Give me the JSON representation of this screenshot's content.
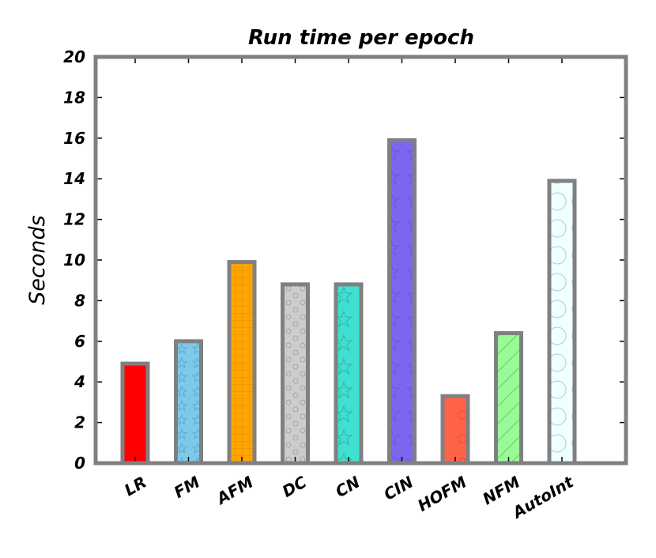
{
  "chart_data": {
    "type": "bar",
    "title": "Run time per epoch",
    "ylabel": "Seconds",
    "xlabel": "",
    "ylim": [
      0,
      20
    ],
    "yticks": [
      "0",
      "2",
      "4",
      "6",
      "8",
      "10",
      "12",
      "14",
      "16",
      "18",
      "20"
    ],
    "categories": [
      "LR",
      "FM",
      "AFM",
      "DC",
      "CN",
      "CIN",
      "HOFM",
      "NFM",
      "AutoInt"
    ],
    "values": [
      4.9,
      6.0,
      9.9,
      8.8,
      8.8,
      15.9,
      3.3,
      6.4,
      13.9
    ],
    "colors": [
      "#ff0000",
      "#7ec8e8",
      "#ffa500",
      "#cccccc",
      "#40e0d0",
      "#7b68ee",
      "#ff6347",
      "#98fb98",
      "#f0ffff"
    ],
    "patterns": [
      "none",
      "stars",
      "grid",
      "circles-small",
      "stars-large",
      "stars-faint",
      "circles-sparse",
      "diagonal",
      "circles-large"
    ],
    "grid": false,
    "legend": "none"
  }
}
